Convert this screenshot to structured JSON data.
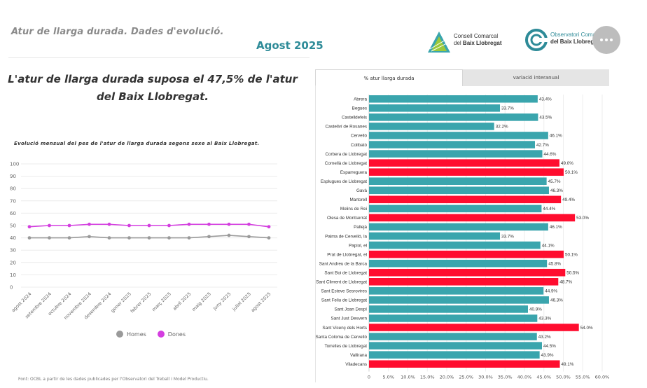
{
  "header": {
    "title": "Atur de llarga durada. Dades d'evolució.",
    "date": "Agost 2025"
  },
  "logos": {
    "consell_line1": "Consell Comarcal",
    "consell_line2": "del",
    "consell_line2b": "Baix Llobregat",
    "observatori_line1": "Observatori Comarcal",
    "observatori_line2": "del",
    "observatori_line2b": "Baix Llobregat"
  },
  "headline": "L'atur de llarga durada suposa el 47,5% de l'atur del Baix Llobregat.",
  "tabs": [
    {
      "label": "% atur llarga durada",
      "active": true
    },
    {
      "label": "variació interanual",
      "active": false
    }
  ],
  "footnote": "Font: OCBL a partir de les dades publicades per l'Observatori del Treball i Model Productiu.",
  "colors": {
    "teal": "#3aa5ad",
    "red": "#ff0d2f",
    "homes": "#9a9a9a",
    "dones": "#d43ee0"
  },
  "chart_data": [
    {
      "type": "line",
      "title": "Evolució mensual del pes de l'atur de llarga durada segons sexe al Baix Llobregat.",
      "categories": [
        "agost 2024",
        "setembre 2024",
        "octubre 2024",
        "novembre 2024",
        "desembre 2024",
        "gener 2025",
        "febrer 2025",
        "març 2025",
        "abril 2025",
        "maig 2025",
        "juny 2025",
        "juliol 2025",
        "agost 2025"
      ],
      "series": [
        {
          "name": "Homes",
          "values": [
            40,
            40,
            40,
            41,
            40,
            40,
            40,
            40,
            40,
            41,
            42,
            41,
            40
          ]
        },
        {
          "name": "Dones",
          "values": [
            49,
            50,
            50,
            51,
            51,
            50,
            50,
            50,
            51,
            51,
            51,
            51,
            49
          ]
        }
      ],
      "yticks": [
        0,
        10,
        20,
        30,
        40,
        50,
        60,
        70,
        80,
        90,
        100
      ],
      "ylim": [
        0,
        100
      ],
      "grid": true,
      "legend": "bottom"
    },
    {
      "type": "bar",
      "orientation": "horizontal",
      "categories": [
        "Abrera",
        "Begues",
        "Castelldefels",
        "Castellví de Rosanes",
        "Cervelló",
        "Collbató",
        "Corbera de Llobregat",
        "Cornellà de Llobregat",
        "Esparreguera",
        "Esplugues de Llobregat",
        "Gavà",
        "Martorell",
        "Molins de Rei",
        "Olesa de Montserrat",
        "Pallejà",
        "Palma de Cervelló, la",
        "Papiol, el",
        "Prat de Llobregat, el",
        "Sant Andreu de la Barca",
        "Sant Boi de Llobregat",
        "Sant Climent de Llobregat",
        "Sant Esteve Sesrovires",
        "Sant Feliu de Llobregat",
        "Sant Joan Despí",
        "Sant Just Desvern",
        "Sant Vicenç dels Horts",
        "Santa Coloma de Cervelló",
        "Torrelles de Llobregat",
        "Vallirana",
        "Viladecans"
      ],
      "values": [
        43.4,
        33.7,
        43.5,
        32.2,
        46.1,
        42.7,
        44.6,
        49.0,
        50.1,
        45.7,
        46.3,
        49.4,
        44.4,
        53.0,
        46.1,
        33.7,
        44.1,
        50.1,
        45.8,
        50.5,
        48.7,
        44.9,
        46.3,
        40.9,
        43.3,
        54.0,
        43.2,
        44.5,
        43.9,
        49.1
      ],
      "value_labels": [
        "43.4%",
        "33.7%",
        "43.5%",
        "32.2%",
        "46.1%",
        "42.7%",
        "44.6%",
        "49.0%",
        "50.1%",
        "45.7%",
        "46.3%",
        "49.4%",
        "44.4%",
        "53.0%",
        "46.1%",
        "33.7%",
        "44.1%",
        "50.1%",
        "45.8%",
        "50.5%",
        "48.7%",
        "44.9%",
        "46.3%",
        "40.9%",
        "43.3%",
        "54.0%",
        "43.2%",
        "44.5%",
        "43.9%",
        "49.1%"
      ],
      "xticks": [
        "0",
        "5.0%",
        "10.0%",
        "15.0%",
        "20.0%",
        "25.0%",
        "30.0%",
        "35.0%",
        "40.0%",
        "45.0%",
        "50.0%",
        "55.0%",
        "60.0%"
      ],
      "xlim": [
        0,
        60
      ],
      "highlight_threshold": 47.5,
      "grid": true
    }
  ]
}
